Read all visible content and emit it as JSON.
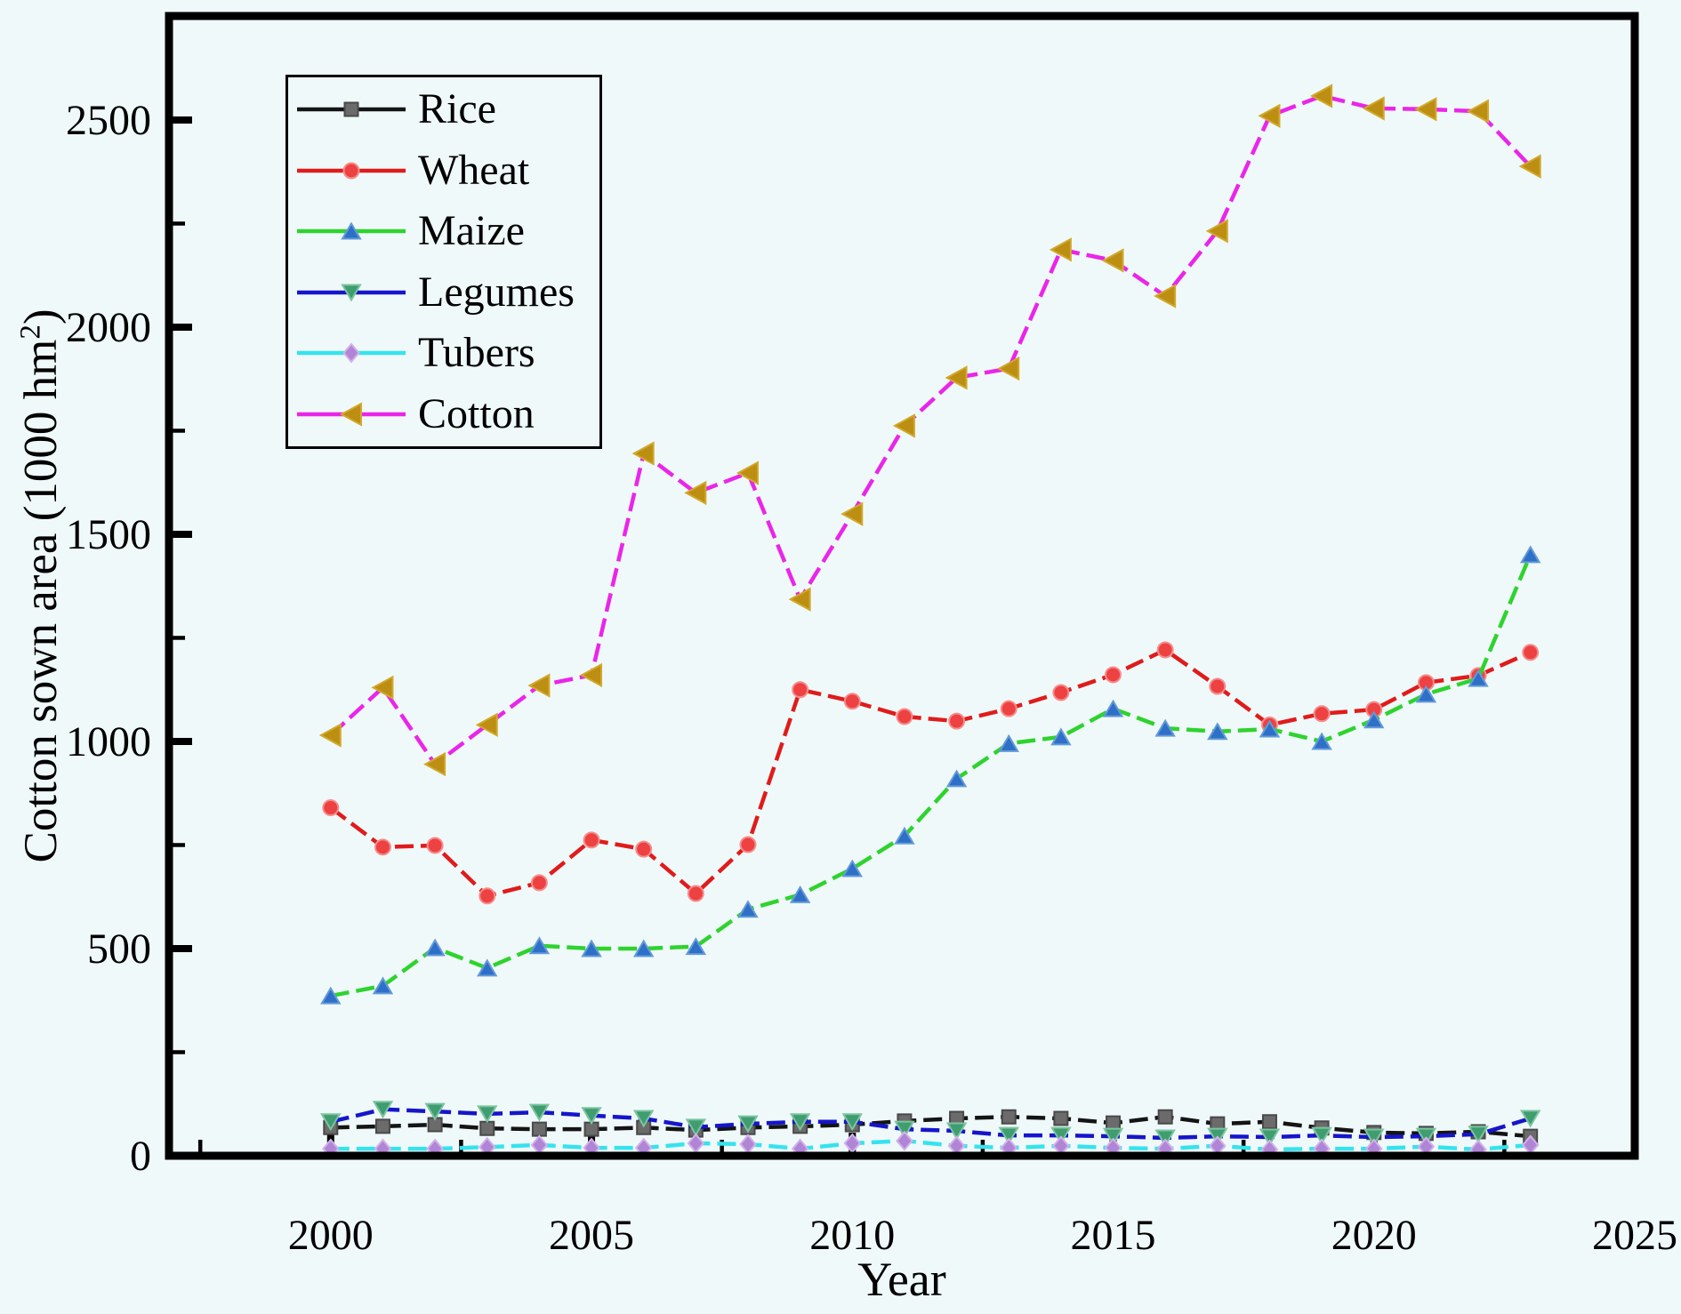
{
  "figure": {
    "background_color": "#f0f9fa",
    "frame_color": "#000000",
    "text_color": "#000000"
  },
  "chart_data": {
    "type": "line",
    "title": "",
    "xlabel": "Year",
    "ylabel": "Cotton sown area (1000 hm2)",
    "ylabel_parts": {
      "prefix": "Cotton sown area (1000 hm",
      "sup": "2",
      "suffix": ")"
    },
    "grid": false,
    "legend_position": "upper-left-inside",
    "xlim": [
      1996.9,
      2025.0
    ],
    "ylim": [
      0,
      2751
    ],
    "xticks": [
      2000,
      2005,
      2010,
      2015,
      2020,
      2025
    ],
    "yticks": [
      0,
      500,
      1000,
      1500,
      2000,
      2500
    ],
    "x_minor_ticks": [
      1997.5,
      2002.5,
      2007.5,
      2012.5,
      2017.5,
      2022.5
    ],
    "y_minor_ticks": [
      250,
      750,
      1250,
      1750,
      2250
    ],
    "x": [
      2000,
      2001,
      2002,
      2003,
      2004,
      2005,
      2006,
      2007,
      2008,
      2009,
      2010,
      2011,
      2012,
      2013,
      2014,
      2015,
      2016,
      2017,
      2018,
      2019,
      2020,
      2021,
      2022,
      2023
    ],
    "series": [
      {
        "name": "Rice",
        "line_color": "#141414",
        "marker_shape": "square",
        "marker_fill": "#6b6b6b",
        "marker_edge": "#494949",
        "marker_w": 15,
        "marker_h": 15,
        "values": [
          68,
          71,
          75,
          66,
          64,
          64,
          68,
          62,
          68,
          71,
          75,
          84,
          90,
          94,
          90,
          79,
          94,
          77,
          82,
          67,
          56,
          54,
          58,
          47
        ]
      },
      {
        "name": "Wheat",
        "line_color": "#e01b1b",
        "marker_shape": "circle",
        "marker_fill": "#ee4141",
        "marker_edge": "#f58e8e",
        "marker_w": 17,
        "marker_h": 17,
        "values": [
          840,
          745,
          749,
          627,
          659,
          762,
          740,
          633,
          751,
          1125,
          1097,
          1060,
          1049,
          1079,
          1118,
          1161,
          1221,
          1133,
          1040,
          1067,
          1077,
          1142,
          1159,
          1215
        ]
      },
      {
        "name": "Maize",
        "line_color": "#2ed32e",
        "marker_shape": "triangle-up",
        "marker_fill": "#2e6fc8",
        "marker_edge": "#639ad8",
        "marker_w": 20,
        "marker_h": 17,
        "values": [
          386,
          410,
          502,
          453,
          507,
          500,
          500,
          505,
          595,
          630,
          693,
          772,
          910,
          995,
          1011,
          1079,
          1032,
          1024,
          1030,
          1000,
          1052,
          1114,
          1152,
          1451
        ]
      },
      {
        "name": "Legumes",
        "line_color": "#1515cc",
        "marker_shape": "triangle-down",
        "marker_fill": "#3f9d6f",
        "marker_edge": "#7cc4a0",
        "marker_w": 20,
        "marker_h": 17,
        "values": [
          82,
          112,
          107,
          101,
          105,
          97,
          90,
          69,
          77,
          82,
          82,
          64,
          60,
          49,
          49,
          47,
          43,
          47,
          45,
          49,
          45,
          47,
          52,
          90
        ]
      },
      {
        "name": "Tubers",
        "line_color": "#35e3ed",
        "marker_shape": "diamond",
        "marker_fill": "#b185d6",
        "marker_edge": "#d2b2ea",
        "marker_w": 17,
        "marker_h": 20,
        "values": [
          17,
          17,
          17,
          21,
          26,
          19,
          19,
          30,
          28,
          17,
          30,
          36,
          24,
          19,
          24,
          19,
          17,
          24,
          15,
          17,
          17,
          22,
          15,
          26
        ]
      },
      {
        "name": "Cotton",
        "line_color": "#ea25ea",
        "marker_shape": "triangle-left",
        "marker_fill": "#bc8e11",
        "marker_edge": "#d2a92e",
        "marker_w": 22,
        "marker_h": 24,
        "values": [
          1015,
          1130,
          945,
          1040,
          1135,
          1160,
          1695,
          1600,
          1648,
          1343,
          1549,
          1762,
          1878,
          1900,
          2187,
          2161,
          2075,
          2232,
          2510,
          2558,
          2528,
          2526,
          2521,
          2388
        ]
      }
    ]
  }
}
